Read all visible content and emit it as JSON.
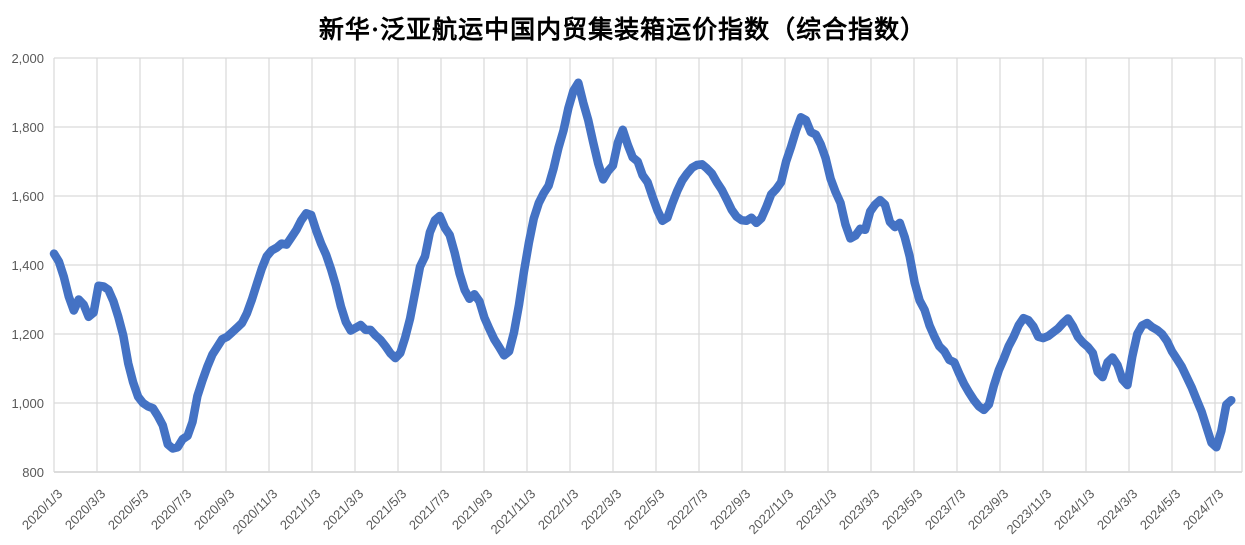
{
  "chart": {
    "title": "新华·泛亚航运中国内贸集装箱运价指数（综合指数）",
    "colors": {
      "series_line": "#4472C4",
      "gridline": "#D9D9D9",
      "axis_line": "#C6C6C6",
      "tick_label": "#595959",
      "title": "#000000",
      "background": "#FFFFFF"
    },
    "y_axis": {
      "min": 800,
      "max": 2000,
      "step": 200,
      "tick_labels": [
        "800",
        "1,000",
        "1,200",
        "1,400",
        "1,600",
        "1,800",
        "2,000"
      ]
    },
    "x_axis": {
      "tick_labels": [
        "2020/1/3",
        "2020/3/3",
        "2020/5/3",
        "2020/7/3",
        "2020/9/3",
        "2020/11/3",
        "2021/1/3",
        "2021/3/3",
        "2021/5/3",
        "2021/7/3",
        "2021/9/3",
        "2021/11/3",
        "2022/1/3",
        "2022/3/3",
        "2022/5/3",
        "2022/7/3",
        "2022/9/3",
        "2022/11/3",
        "2023/1/3",
        "2023/3/3",
        "2023/5/3",
        "2023/7/3",
        "2023/9/3",
        "2023/11/3",
        "2024/1/3",
        "2024/3/3",
        "2024/5/3",
        "2024/7/3"
      ]
    }
  },
  "chart_data": {
    "type": "line",
    "title": "新华·泛亚航运中国内贸集装箱运价指数（综合指数）",
    "xlabel": "",
    "ylabel": "",
    "ylim": [
      800,
      2000
    ],
    "grid": true,
    "legend": false,
    "x_tick_dates": [
      "2020/1/3",
      "2020/3/3",
      "2020/5/3",
      "2020/7/3",
      "2020/9/3",
      "2020/11/3",
      "2021/1/3",
      "2021/3/3",
      "2021/5/3",
      "2021/7/3",
      "2021/9/3",
      "2021/11/3",
      "2022/1/3",
      "2022/3/3",
      "2022/5/3",
      "2022/7/3",
      "2022/9/3",
      "2022/11/3",
      "2023/1/3",
      "2023/3/3",
      "2023/5/3",
      "2023/7/3",
      "2023/9/3",
      "2023/11/3",
      "2024/1/3",
      "2024/3/3",
      "2024/5/3",
      "2024/7/3"
    ],
    "series": [
      {
        "name": "综合指数",
        "start_date": "2020-01-03",
        "interval_days": 7,
        "values": [
          1433,
          1410,
          1365,
          1308,
          1268,
          1300,
          1285,
          1250,
          1262,
          1340,
          1338,
          1328,
          1295,
          1250,
          1195,
          1115,
          1060,
          1018,
          1000,
          990,
          985,
          962,
          935,
          880,
          868,
          872,
          895,
          905,
          945,
          1020,
          1065,
          1105,
          1140,
          1162,
          1185,
          1192,
          1205,
          1218,
          1232,
          1260,
          1300,
          1345,
          1390,
          1425,
          1442,
          1450,
          1462,
          1459,
          1480,
          1502,
          1530,
          1550,
          1545,
          1500,
          1462,
          1430,
          1388,
          1340,
          1280,
          1235,
          1210,
          1218,
          1226,
          1212,
          1212,
          1196,
          1183,
          1165,
          1144,
          1130,
          1145,
          1190,
          1245,
          1320,
          1395,
          1425,
          1495,
          1530,
          1542,
          1508,
          1487,
          1435,
          1375,
          1328,
          1302,
          1315,
          1295,
          1248,
          1215,
          1185,
          1162,
          1138,
          1150,
          1205,
          1285,
          1380,
          1465,
          1535,
          1580,
          1608,
          1630,
          1680,
          1740,
          1790,
          1855,
          1905,
          1928,
          1870,
          1820,
          1755,
          1695,
          1648,
          1672,
          1688,
          1755,
          1792,
          1748,
          1712,
          1700,
          1660,
          1640,
          1598,
          1558,
          1528,
          1537,
          1578,
          1615,
          1645,
          1665,
          1682,
          1690,
          1692,
          1680,
          1665,
          1640,
          1618,
          1590,
          1560,
          1540,
          1530,
          1528,
          1537,
          1522,
          1535,
          1568,
          1605,
          1620,
          1640,
          1700,
          1742,
          1790,
          1828,
          1820,
          1785,
          1778,
          1750,
          1710,
          1650,
          1612,
          1580,
          1518,
          1477,
          1485,
          1505,
          1502,
          1555,
          1575,
          1588,
          1575,
          1525,
          1510,
          1522,
          1480,
          1425,
          1348,
          1297,
          1270,
          1225,
          1192,
          1164,
          1150,
          1125,
          1118,
          1085,
          1055,
          1030,
          1008,
          990,
          980,
          996,
          1050,
          1095,
          1128,
          1165,
          1192,
          1225,
          1246,
          1240,
          1222,
          1192,
          1188,
          1194,
          1205,
          1216,
          1232,
          1245,
          1222,
          1192,
          1175,
          1163,
          1145,
          1090,
          1075,
          1118,
          1132,
          1110,
          1068,
          1052,
          1135,
          1200,
          1225,
          1232,
          1220,
          1212,
          1200,
          1180,
          1150,
          1128,
          1105,
          1075,
          1045,
          1010,
          975,
          930,
          885,
          872,
          920,
          995,
          1008
        ]
      }
    ]
  }
}
